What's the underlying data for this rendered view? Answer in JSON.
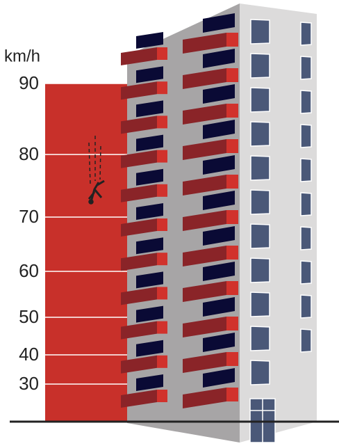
{
  "chart_data": {
    "type": "bar",
    "y_label": "km/h",
    "values": [
      90
    ],
    "color": "#c8302a",
    "ylim": [
      0,
      90
    ],
    "yticks": [
      30,
      40,
      50,
      60,
      70,
      80,
      90
    ],
    "yscale": "square",
    "grid": true,
    "grid_color": "#ffffff"
  }
}
